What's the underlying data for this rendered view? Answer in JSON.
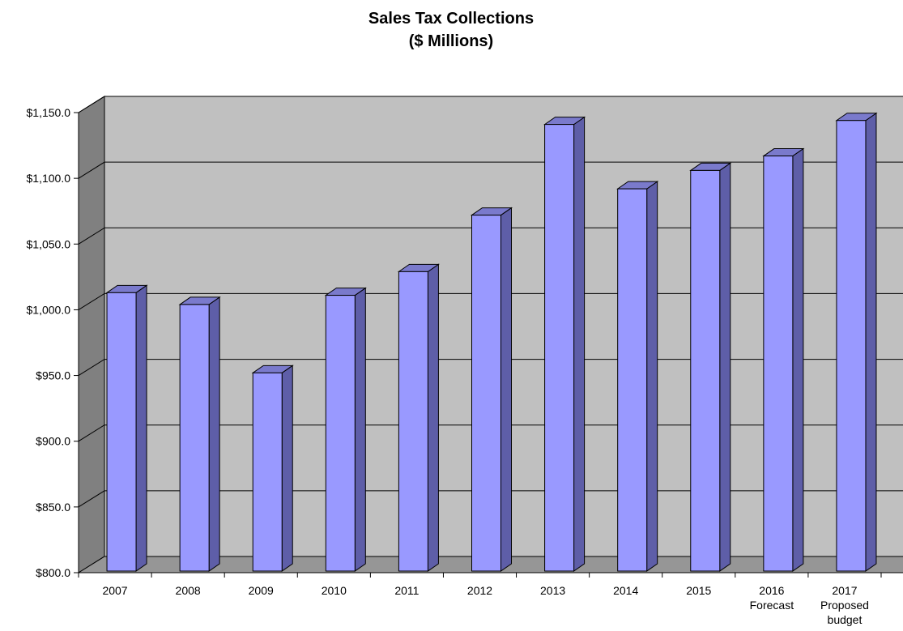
{
  "chart_data": {
    "type": "bar",
    "title": "Sales Tax Collections",
    "subtitle": "($ Millions)",
    "xlabel": "",
    "ylabel": "",
    "categories": [
      [
        "2007"
      ],
      [
        "2008"
      ],
      [
        "2009"
      ],
      [
        "2010"
      ],
      [
        "2011"
      ],
      [
        "2012"
      ],
      [
        "2013"
      ],
      [
        "2014"
      ],
      [
        "2015"
      ],
      [
        "2016",
        "Forecast"
      ],
      [
        "2017",
        "Proposed",
        "budget"
      ]
    ],
    "values": [
      1013,
      1004,
      952,
      1011,
      1029,
      1072,
      1141,
      1092,
      1106,
      1117,
      1144
    ],
    "ylim": [
      800,
      1150
    ],
    "yticks": [
      800,
      850,
      900,
      950,
      1000,
      1050,
      1100,
      1150
    ],
    "ytick_labels": [
      "$800.0",
      "$850.0",
      "$900.0",
      "$950.0",
      "$1,000.0",
      "$1,050.0",
      "$1,100.0",
      "$1,150.0"
    ],
    "grid": true,
    "style": "3d-column",
    "colors": {
      "bar_front": "#9999ff",
      "bar_side": "#5e5ea8",
      "bar_top": "#7a7acc",
      "back_wall": "#c0c0c0",
      "side_wall": "#808080",
      "floor": "#969696"
    }
  }
}
